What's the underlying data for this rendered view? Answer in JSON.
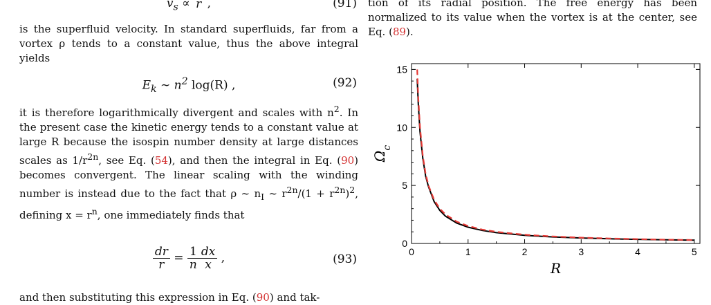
{
  "left_column": {
    "eq91": {
      "lhs": "v",
      "sub": "s",
      "rel": " ∝ ",
      "frac_num": "",
      "frac_den": "r",
      "tail": " ,",
      "number": "(91)"
    },
    "para1": "is the superfluid velocity. In standard superfluids, far from a vortex ρ tends to a constant value, thus the above integral yields",
    "eq92": {
      "lhs": "E",
      "sub": "k",
      "rel": " ∼ n",
      "sup": "2",
      "tail": " log(R) ,",
      "number": "(92)"
    },
    "para2": {
      "text_a": "it is therefore logarithmically divergent and scales with n",
      "sup_a": "2",
      "text_b": ". In the present case the kinetic energy tends to a constant value at large R because the isospin number density at large distances scales as 1/r",
      "sup_b": "2n",
      "text_c": ", see Eq. (",
      "ref_a": "54",
      "text_d": "), and then the integral in Eq. (",
      "ref_b": "90",
      "text_e": ") becomes convergent. The linear scaling with the winding number is instead due to the fact that ρ ∼ n",
      "sub_c": "I",
      "text_f": " ∼ r",
      "sup_c": "2n",
      "text_g": "/(1 + r",
      "sup_d": "2n",
      "text_h": ")",
      "sup_e": "2",
      "text_i": ", defining x = r",
      "sup_f": "n",
      "text_j": ", one immediately finds that"
    },
    "eq93": {
      "f1_num": "dr",
      "f1_den": "r",
      "eq": " = ",
      "f2_num": "1",
      "f2_den": "n",
      "f3_num": "dx",
      "f3_den": "x",
      "tail": " ,",
      "number": "(93)"
    },
    "para3": {
      "text_a": "and then substituting this expression in Eq. (",
      "ref": "90",
      "text_b": ") and tak-"
    }
  },
  "right_column": {
    "caption": {
      "text_a": "tion of its radial position. The free energy has been normalized to its value when the vortex is at the center, see Eq. (",
      "ref": "89",
      "text_b": ")."
    }
  },
  "chart_data": {
    "type": "line",
    "xlabel": "R",
    "ylabel": "Ωc",
    "xlim": [
      0,
      5.1
    ],
    "ylim": [
      0,
      15.5
    ],
    "xticks": [
      0,
      1,
      2,
      3,
      4,
      5
    ],
    "yticks": [
      0,
      5,
      10,
      15
    ],
    "grid": false,
    "series": [
      {
        "style": "solid",
        "color": "#000000",
        "x": [
          0.1,
          0.12,
          0.15,
          0.2,
          0.25,
          0.3,
          0.4,
          0.5,
          0.6,
          0.8,
          1.0,
          1.25,
          1.5,
          2.0,
          2.5,
          3.0,
          3.5,
          4.0,
          4.5,
          5.0
        ],
        "y": [
          14.2,
          12.0,
          9.6,
          7.3,
          5.8,
          4.9,
          3.6,
          2.85,
          2.35,
          1.75,
          1.4,
          1.12,
          0.93,
          0.7,
          0.56,
          0.47,
          0.4,
          0.35,
          0.31,
          0.28
        ]
      },
      {
        "style": "dashed",
        "color": "#e53935",
        "x": [
          0.1,
          0.12,
          0.15,
          0.2,
          0.25,
          0.3,
          0.4,
          0.5,
          0.6,
          0.8,
          1.0,
          1.25,
          1.5,
          2.0,
          2.5,
          3.0,
          3.5,
          4.0,
          4.5,
          5.0
        ],
        "y": [
          15.0,
          12.5,
          10.0,
          7.5,
          6.0,
          5.0,
          3.75,
          3.0,
          2.5,
          1.88,
          1.5,
          1.2,
          1.0,
          0.75,
          0.6,
          0.5,
          0.43,
          0.375,
          0.33,
          0.3
        ]
      }
    ]
  }
}
